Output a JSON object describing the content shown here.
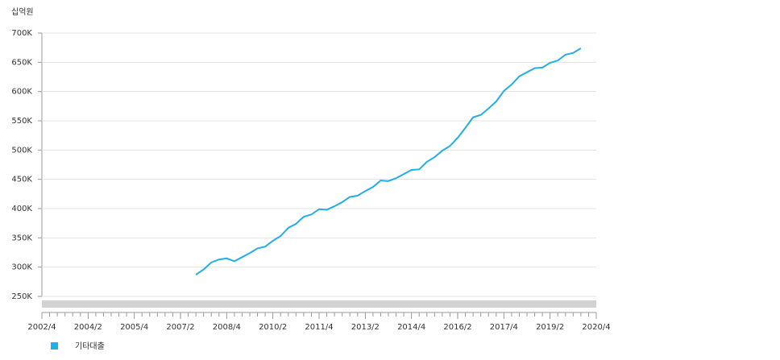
{
  "chart_data": {
    "type": "line",
    "ylabel": "십억원",
    "categories": [
      "2002/4",
      null,
      null,
      null,
      null,
      null,
      "2004/2",
      null,
      null,
      null,
      null,
      null,
      "2005/4",
      null,
      null,
      null,
      null,
      null,
      "2007/2",
      null,
      null,
      null,
      null,
      null,
      "2008/4",
      null,
      null,
      null,
      null,
      null,
      "2010/2",
      null,
      null,
      null,
      null,
      null,
      "2011/4",
      null,
      null,
      null,
      null,
      null,
      "2013/2",
      null,
      null,
      null,
      null,
      null,
      "2014/4",
      null,
      null,
      null,
      null,
      null,
      "2016/2",
      null,
      null,
      null,
      null,
      null,
      "2017/4",
      null,
      null,
      null,
      null,
      null,
      "2019/2",
      null,
      null,
      null,
      null,
      null,
      "2020/4"
    ],
    "series": [
      {
        "name": "기타대출",
        "color": "#22aee6",
        "values": [
          null,
          null,
          null,
          null,
          null,
          null,
          null,
          null,
          null,
          null,
          null,
          null,
          null,
          null,
          null,
          null,
          null,
          null,
          null,
          null,
          287000,
          296000,
          308000,
          313000,
          315000,
          310000,
          317000,
          324000,
          332000,
          335000,
          345000,
          353000,
          367000,
          374000,
          386000,
          390000,
          399000,
          398000,
          404000,
          411000,
          420000,
          422000,
          430000,
          437000,
          448000,
          447000,
          452000,
          459000,
          466000,
          467000,
          480000,
          488000,
          499000,
          507000,
          521000,
          538000,
          556000,
          560000,
          571000,
          583000,
          601000,
          612000,
          626000,
          633000,
          640000,
          641000,
          649000,
          653000,
          663000,
          666000,
          674000,
          null,
          null
        ]
      }
    ],
    "ylim": [
      250000,
      700000
    ],
    "yticks": [
      {
        "value": 250000,
        "label": "250K"
      },
      {
        "value": 300000,
        "label": "300K"
      },
      {
        "value": 350000,
        "label": "350K"
      },
      {
        "value": 400000,
        "label": "400K"
      },
      {
        "value": 450000,
        "label": "450K"
      },
      {
        "value": 500000,
        "label": "500K"
      },
      {
        "value": 550000,
        "label": "550K"
      },
      {
        "value": 600000,
        "label": "600K"
      },
      {
        "value": 650000,
        "label": "650K"
      },
      {
        "value": 700000,
        "label": "700K"
      }
    ],
    "grid": true
  }
}
